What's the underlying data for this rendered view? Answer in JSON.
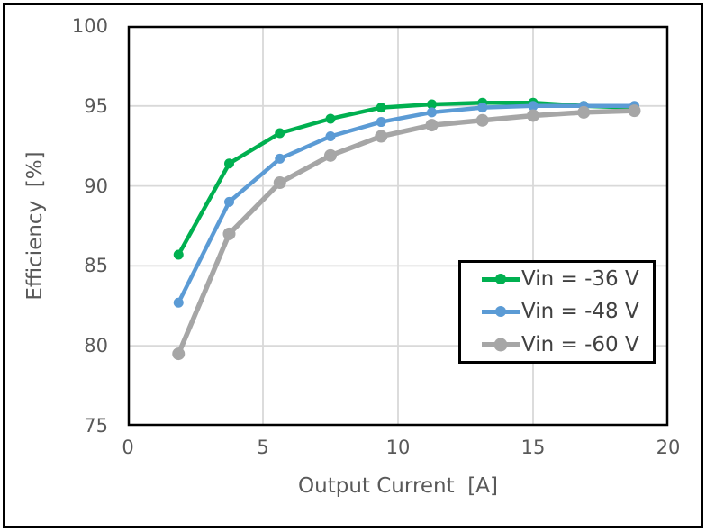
{
  "chart_data": {
    "type": "line",
    "title": "",
    "xlabel": "Output Current  [A]",
    "ylabel": "Efficiency  [%]",
    "xlim": [
      0,
      20
    ],
    "ylim": [
      75,
      100
    ],
    "xticks": [
      0,
      5,
      10,
      15,
      20
    ],
    "yticks": [
      75,
      80,
      85,
      90,
      95,
      100
    ],
    "grid": true,
    "legend_position": "inside-right",
    "x": [
      1.875,
      3.75,
      5.625,
      7.5,
      9.375,
      11.25,
      13.125,
      15,
      16.875,
      18.75
    ],
    "series": [
      {
        "name": "Vin = -36 V",
        "color": "#00B050",
        "line_width": 4.5,
        "marker_radius": 5.5,
        "values": [
          85.7,
          91.4,
          93.3,
          94.2,
          94.9,
          95.1,
          95.2,
          95.2,
          95.0,
          94.9
        ]
      },
      {
        "name": "Vin = -48 V",
        "color": "#5B9BD5",
        "line_width": 4.5,
        "marker_radius": 5.5,
        "values": [
          82.7,
          89.0,
          91.7,
          93.1,
          94.0,
          94.6,
          94.9,
          95.0,
          95.0,
          95.0
        ]
      },
      {
        "name": "Vin = -60 V",
        "color": "#A6A6A6",
        "line_width": 5.5,
        "marker_radius": 7,
        "values": [
          79.5,
          87.0,
          90.2,
          91.9,
          93.1,
          93.8,
          94.1,
          94.4,
          94.6,
          94.7
        ]
      }
    ]
  },
  "colors": {
    "text": "#595959",
    "legend_text": "#404040",
    "gridline": "#D9D9D9",
    "plot_border": "#000000",
    "background": "#FFFFFF"
  }
}
